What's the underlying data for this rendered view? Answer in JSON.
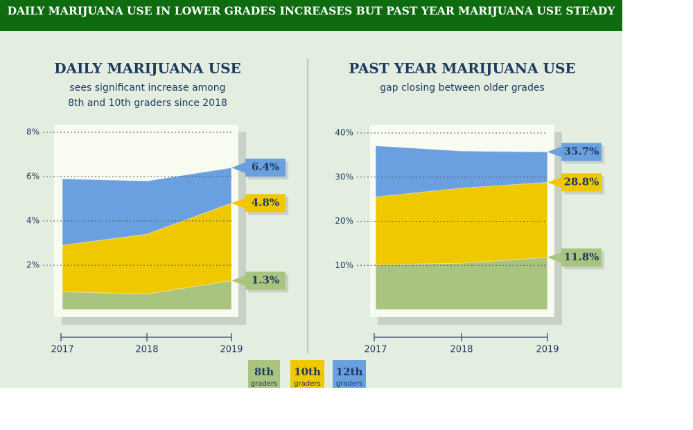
{
  "header": {
    "title": "DAILY MARIJUANA USE IN LOWER GRADES INCREASES BUT PAST YEAR MARIJUANA USE STEADY"
  },
  "legend_note": "graders",
  "chart_data": [
    {
      "type": "area",
      "title": "DAILY MARIJUANA USE",
      "subtitle": [
        "sees significant increase among",
        "8th and 10th graders since 2018"
      ],
      "categories": [
        "2017",
        "2018",
        "2019"
      ],
      "series": [
        {
          "name": "8th",
          "color": "#a9c47f",
          "values": [
            0.8,
            0.7,
            1.3
          ],
          "value_labels": [
            null,
            null,
            "1.3%"
          ]
        },
        {
          "name": "10th",
          "color": "#f0c800",
          "values": [
            2.9,
            3.4,
            4.8
          ],
          "value_labels": [
            null,
            null,
            "4.8%"
          ]
        },
        {
          "name": "12th",
          "color": "#6a9fe0",
          "values": [
            5.9,
            5.8,
            6.4
          ],
          "value_labels": [
            null,
            null,
            "6.4%"
          ]
        }
      ],
      "ylim": [
        0,
        8
      ],
      "yticks": [
        {
          "value": 2,
          "label": "2%"
        },
        {
          "value": 4,
          "label": "4%"
        },
        {
          "value": 6,
          "label": "6%"
        },
        {
          "value": 8,
          "label": "8%"
        }
      ],
      "grid": true
    },
    {
      "type": "area",
      "title": "PAST YEAR MARIJUANA USE",
      "subtitle": [
        "gap closing between older grades"
      ],
      "categories": [
        "2017",
        "2018",
        "2019"
      ],
      "series": [
        {
          "name": "8th",
          "color": "#a9c47f",
          "values": [
            10.1,
            10.5,
            11.8
          ],
          "value_labels": [
            null,
            null,
            "11.8%"
          ]
        },
        {
          "name": "10th",
          "color": "#f0c800",
          "values": [
            25.5,
            27.5,
            28.8
          ],
          "value_labels": [
            null,
            null,
            "28.8%"
          ]
        },
        {
          "name": "12th",
          "color": "#6a9fe0",
          "values": [
            37.1,
            35.9,
            35.7
          ],
          "value_labels": [
            null,
            null,
            "35.7%"
          ]
        }
      ],
      "ylim": [
        0,
        40
      ],
      "yticks": [
        {
          "value": 10,
          "label": "10%"
        },
        {
          "value": 20,
          "label": "20%"
        },
        {
          "value": 30,
          "label": "30%"
        },
        {
          "value": 40,
          "label": "40%"
        }
      ],
      "grid": true
    }
  ]
}
